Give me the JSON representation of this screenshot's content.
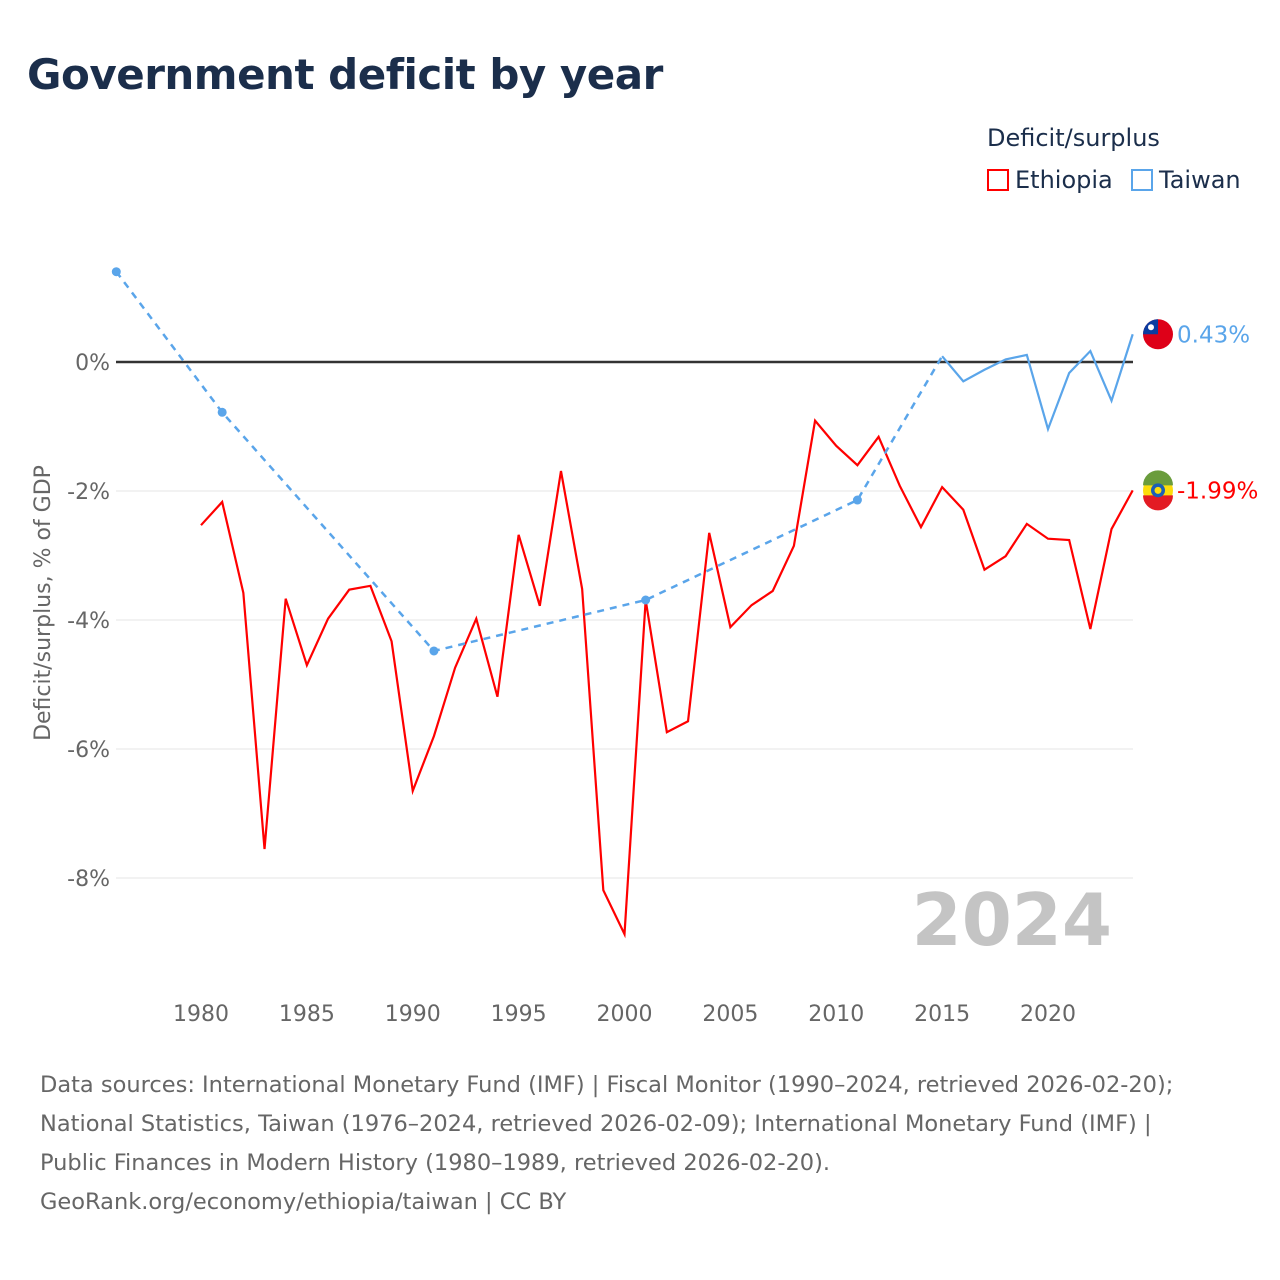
{
  "title": "Government deficit by year",
  "legend": {
    "title": "Deficit/surplus",
    "items": [
      "Ethiopia",
      "Taiwan"
    ]
  },
  "colors": {
    "Ethiopia": "#ff0000",
    "Taiwan": "#5aa5ea"
  },
  "chart_data": {
    "type": "line",
    "title": "Government deficit by year",
    "xlabel": "",
    "ylabel": "Deficit/surplus, % of GDP",
    "xlim": [
      1976,
      2024
    ],
    "ylim": [
      -9.3,
      1.6
    ],
    "x_ticks": [
      "1980",
      "1985",
      "1990",
      "1995",
      "2000",
      "2005",
      "2010",
      "2015",
      "2020"
    ],
    "y_ticks": [
      {
        "v": 0,
        "label": "0%"
      },
      {
        "v": -2,
        "label": "-2%"
      },
      {
        "v": -4,
        "label": "-4%"
      },
      {
        "v": -6,
        "label": "-6%"
      },
      {
        "v": -8,
        "label": "-8%"
      }
    ],
    "year_label": "2024",
    "series": [
      {
        "name": "Ethiopia",
        "end_label": "-1.99%",
        "x": [
          1980,
          1981,
          1982,
          1983,
          1984,
          1985,
          1986,
          1987,
          1988,
          1989,
          1990,
          1991,
          1992,
          1993,
          1994,
          1995,
          1996,
          1997,
          1998,
          1999,
          2000,
          2001,
          2002,
          2003,
          2004,
          2005,
          2006,
          2007,
          2008,
          2009,
          2010,
          2011,
          2012,
          2013,
          2014,
          2015,
          2016,
          2017,
          2018,
          2019,
          2020,
          2021,
          2022,
          2023,
          2024
        ],
        "y": [
          -2.53,
          -2.17,
          -3.58,
          -7.55,
          -3.67,
          -4.7,
          -3.98,
          -3.53,
          -3.47,
          -4.33,
          -6.65,
          -5.8,
          -4.74,
          -3.98,
          -5.19,
          -2.68,
          -3.78,
          -1.69,
          -3.52,
          -8.19,
          -8.87,
          -3.69,
          -5.74,
          -5.57,
          -2.65,
          -4.11,
          -3.77,
          -3.55,
          -2.85,
          -0.91,
          -1.3,
          -1.6,
          -1.16,
          -1.92,
          -2.56,
          -1.94,
          -2.29,
          -3.22,
          -3.01,
          -2.51,
          -2.74,
          -2.76,
          -4.14,
          -2.59,
          -1.99
        ]
      },
      {
        "name": "Taiwan",
        "end_label": "0.43%",
        "sparse_x": [
          1976,
          1981,
          1991,
          2001,
          2011,
          2015
        ],
        "sparse_y": [
          1.4,
          -0.78,
          -4.48,
          -3.69,
          -2.14,
          0.09
        ],
        "x": [
          2015,
          2016,
          2017,
          2018,
          2019,
          2020,
          2021,
          2022,
          2023,
          2024
        ],
        "y": [
          0.09,
          -0.3,
          -0.12,
          0.04,
          0.11,
          -1.04,
          -0.17,
          0.17,
          -0.6,
          0.43
        ]
      }
    ]
  },
  "footer": {
    "lines": [
      "Data sources: International Monetary Fund (IMF) | Fiscal Monitor (1990–2024, retrieved 2026-02-20);",
      "National Statistics, Taiwan (1976–2024, retrieved 2026-02-09); International Monetary Fund (IMF) |",
      "Public Finances in Modern History (1980–1989, retrieved 2026-02-20).",
      "GeoRank.org/economy/ethiopia/taiwan | CC BY"
    ]
  }
}
